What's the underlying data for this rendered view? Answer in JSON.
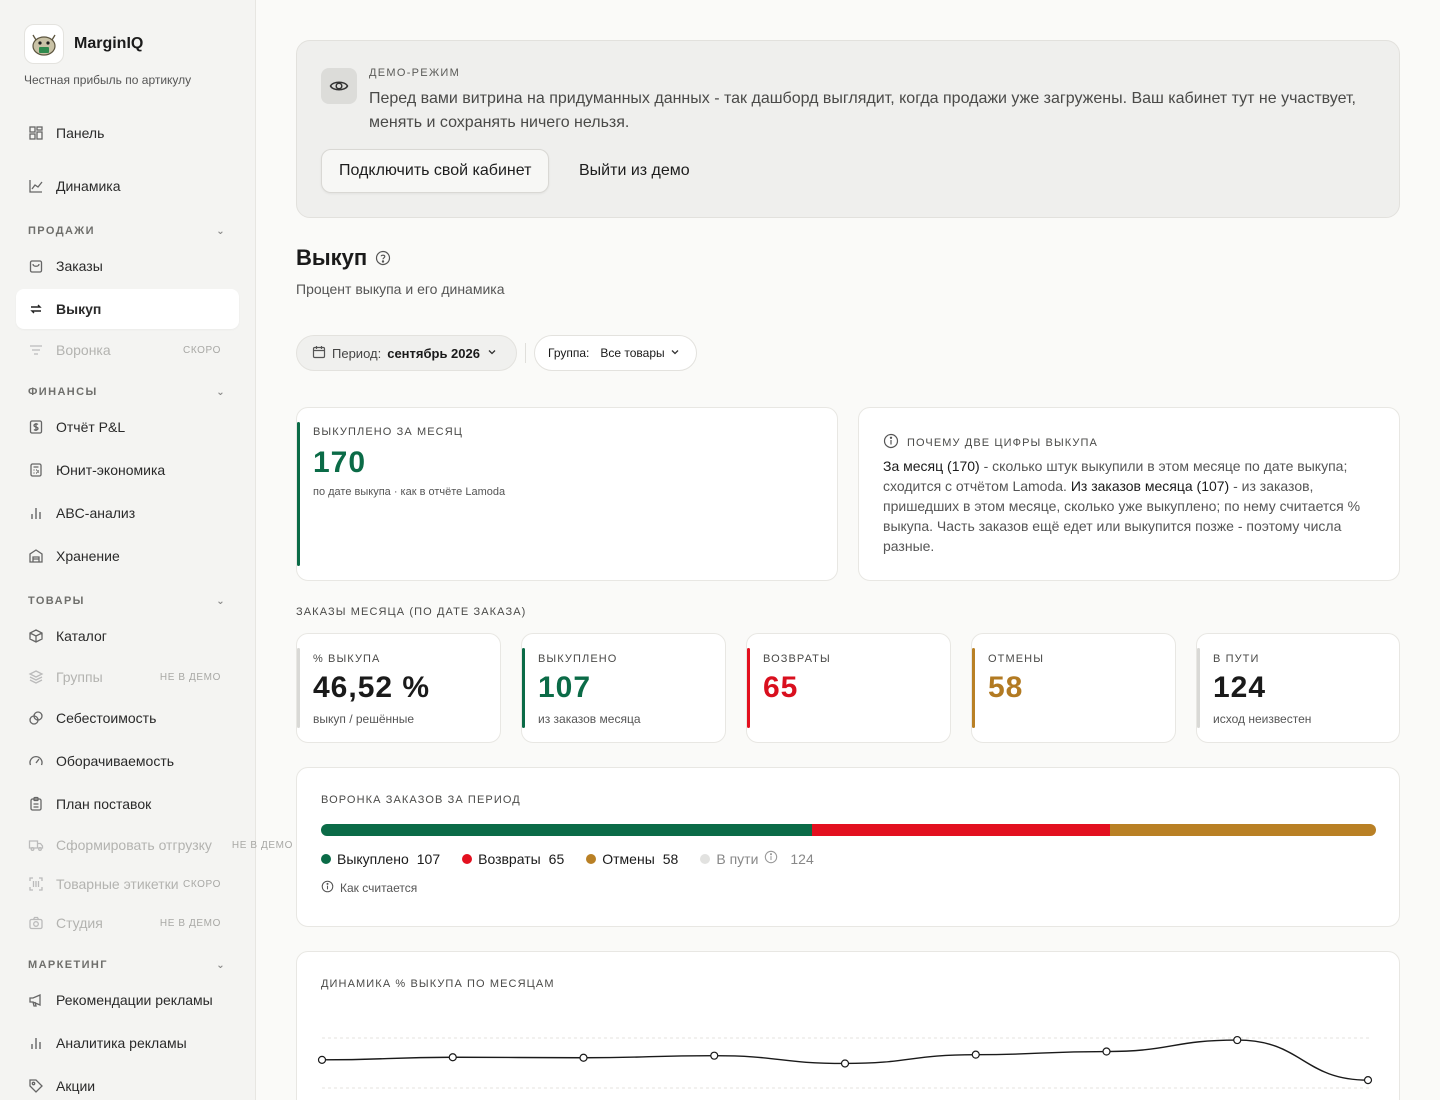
{
  "app": {
    "name": "MarginIQ",
    "tagline": "Честная прибыль по артикулу"
  },
  "sidebar": {
    "panel": "Панель",
    "dynamics": "Динамика",
    "sales_section": "ПРОДАЖИ",
    "orders": "Заказы",
    "buyout": "Выкуп",
    "funnel": "Воронка",
    "badge_soon": "СКОРО",
    "finance_section": "ФИНАНСЫ",
    "pl": "Отчёт P&L",
    "unit": "Юнит-экономика",
    "abc": "ABC-анализ",
    "storage": "Хранение",
    "goods_section": "ТОВАРЫ",
    "catalog": "Каталог",
    "groups": "Группы",
    "badge_not_demo": "НЕ В ДЕМО",
    "cost": "Себестоимость",
    "turnover": "Оборачиваемость",
    "supply": "План поставок",
    "shipment": "Сформировать отгрузку",
    "labels": "Товарные этикетки",
    "studio": "Студия",
    "marketing_section": "МАРКЕТИНГ",
    "ads_rec": "Рекомендации рекламы",
    "ads_analytics": "Аналитика рекламы",
    "promo": "Акции"
  },
  "demo": {
    "label": "ДЕМО-РЕЖИМ",
    "text": "Перед вами витрина на придуманных данных - так дашборд выглядит, когда продажи уже загружены. Ваш кабинет тут не участвует, менять и сохранять ничего нельзя.",
    "connect": "Подключить свой кабинет",
    "exit": "Выйти из демо"
  },
  "page": {
    "title": "Выкуп",
    "subtitle": "Процент выкупа и его динамика"
  },
  "filters": {
    "period_label": "Период:",
    "period_value": "сентябрь 2026",
    "group_label": "Группа:",
    "group_value": "Все товары"
  },
  "month_card": {
    "label": "ВЫКУПЛЕНО ЗА МЕСЯЦ",
    "value": "170",
    "sub": "по дате выкупа · как в отчёте Lamoda"
  },
  "why": {
    "title": "ПОЧЕМУ ДВЕ ЦИФРЫ ВЫКУПА",
    "b1": "За месяц (170)",
    "t1": " - сколько штук выкупили в этом месяце по дате выкупа; сходится с отчётом Lamoda. ",
    "b2": "Из заказов месяца (107)",
    "t2": " - из заказов, пришедших в этом месяце, сколько уже выкуплено; по нему считается % выкупа. Часть заказов ещё едет или выкупится позже - поэтому числа разные."
  },
  "orders_section_label": "ЗАКАЗЫ МЕСЯЦА (ПО ДАТЕ ЗАКАЗА)",
  "kpis": {
    "pct": {
      "label": "% ВЫКУПА",
      "value": "46,52 %",
      "sub": "выкуп / решённые"
    },
    "bought": {
      "label": "ВЫКУПЛЕНО",
      "value": "107",
      "sub": "из заказов месяца"
    },
    "returns": {
      "label": "ВОЗВРАТЫ",
      "value": "65"
    },
    "cancels": {
      "label": "ОТМЕНЫ",
      "value": "58"
    },
    "transit": {
      "label": "В ПУТИ",
      "value": "124",
      "sub": "исход неизвестен"
    }
  },
  "funnel": {
    "title": "ВОРОНКА ЗАКАЗОВ ЗА ПЕРИОД",
    "bought_label": "Выкуплено",
    "bought": 107,
    "returns_label": "Возвраты",
    "returns": 65,
    "cancels_label": "Отмены",
    "cancels": 58,
    "transit_label": "В пути",
    "transit": 124,
    "how": "Как считается",
    "colors": {
      "bought": "#0b6b47",
      "returns": "#e3101f",
      "cancels": "#b98025",
      "transit": "#e2e2e0"
    }
  },
  "chart_data": {
    "type": "line",
    "title": "ДИНАМИКА % ВЫКУПА ПО МЕСЯЦАМ",
    "series": [
      {
        "values": [
          45.8,
          46.3,
          46.2,
          46.6,
          45.1,
          46.8,
          47.4,
          49.6,
          41.9
        ]
      }
    ],
    "ylim": [
      30,
      55
    ],
    "grid": true
  }
}
